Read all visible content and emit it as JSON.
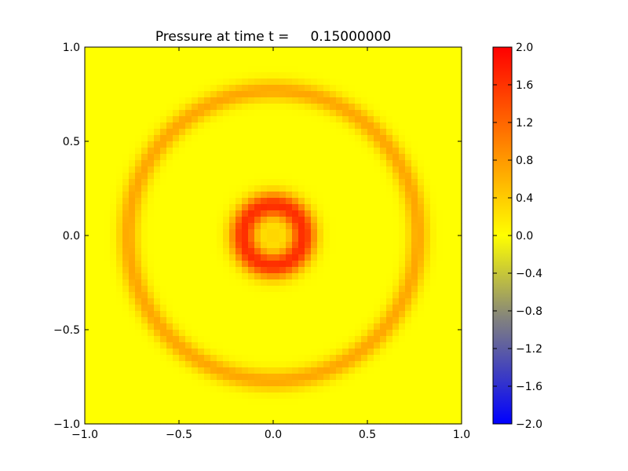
{
  "chart_data": {
    "type": "heatmap",
    "title": "Pressure at time t =     0.15000000",
    "xlabel": "",
    "ylabel": "",
    "xlim": [
      -1.0,
      1.0
    ],
    "ylim": [
      -1.0,
      1.0
    ],
    "x_ticks": [
      "−1.0",
      "−0.5",
      "0.0",
      "0.5",
      "1.0"
    ],
    "x_tick_values": [
      -1.0,
      -0.5,
      0.0,
      0.5,
      1.0
    ],
    "y_ticks": [
      "−1.0",
      "−0.5",
      "0.0",
      "0.5",
      "1.0"
    ],
    "y_tick_values": [
      -1.0,
      -0.5,
      0.0,
      0.5,
      1.0
    ],
    "grid": false,
    "colorbar": {
      "range": [
        -2.0,
        2.0
      ],
      "ticks": [
        "2.0",
        "1.6",
        "1.2",
        "0.8",
        "0.4",
        "0.0",
        "−0.4",
        "−0.8",
        "−1.2",
        "−1.6",
        "−2.0"
      ],
      "tick_values": [
        2.0,
        1.6,
        1.2,
        0.8,
        0.4,
        0.0,
        -0.4,
        -0.8,
        -1.2,
        -1.6,
        -2.0
      ],
      "colors": [
        "#0000ff",
        "#808080",
        "#ffff00",
        "#ff0000"
      ],
      "color_stops": [
        -2.0,
        -0.9,
        0.0,
        2.0
      ]
    },
    "field": {
      "description_free": true,
      "grid_cells": 60,
      "background": 0.0,
      "inner_ring": {
        "radius": 0.16,
        "width": 0.07,
        "amplitude": 1.65
      },
      "center_value": 0.35,
      "outer_ring": {
        "radius": 0.77,
        "width": 0.055,
        "amplitude": 0.7
      }
    }
  }
}
